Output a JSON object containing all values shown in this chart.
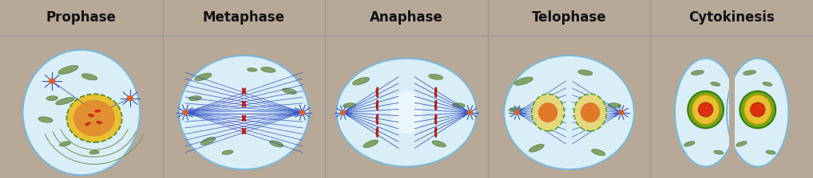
{
  "stages": [
    "Prophase",
    "Metaphase",
    "Anaphase",
    "Telophase",
    "Cytokinesis"
  ],
  "header_bg": "#c8cc8a",
  "body_bg": "#b8a898",
  "cell_bg": "#daeef8",
  "cell_bg_light": "#eef6fc",
  "cell_border": "#7ab8d8",
  "header_text_color": "#111111",
  "header_font_size": 12,
  "divider_color": "#999999",
  "organelle_green": "#7a9a5a",
  "organelle_dark": "#4a7a2a",
  "spindle_blue": "#3a5aaa",
  "chromosome_red": "#cc2010",
  "nucleus_yellow": "#e8c030",
  "nucleus_orange": "#e07820",
  "nucleus_border": "#b8920a",
  "nucleus_green_border": "#4a8a1a",
  "aster_orange": "#e06020",
  "aster_blue": "#4060c0",
  "fig_width": 10.18,
  "fig_height": 2.24
}
